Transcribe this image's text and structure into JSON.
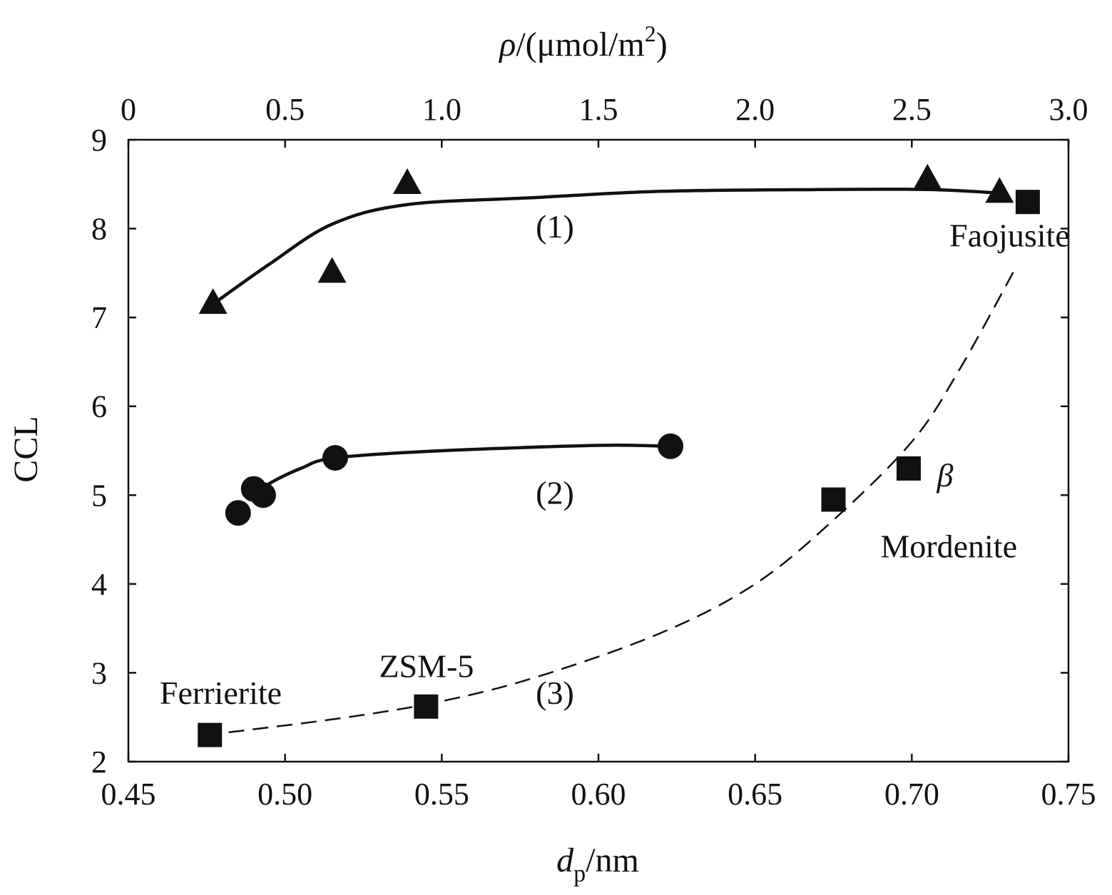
{
  "chart_data": {
    "type": "scatter",
    "title": "",
    "xlabel": {
      "main": "d",
      "sub": "p",
      "rest": "/nm"
    },
    "x2label": {
      "main": "ρ",
      "rest": "/(μmol/m",
      "sup": "2",
      "close": ")"
    },
    "ylabel": "CCL",
    "xlim": [
      0.45,
      0.75
    ],
    "x2lim": [
      0,
      3.0
    ],
    "ylim": [
      2,
      9
    ],
    "x_ticks": [
      {
        "value": 0.45,
        "label": "0.45"
      },
      {
        "value": 0.5,
        "label": "0.50"
      },
      {
        "value": 0.55,
        "label": "0.55"
      },
      {
        "value": 0.6,
        "label": "0.60"
      },
      {
        "value": 0.65,
        "label": "0.65"
      },
      {
        "value": 0.7,
        "label": "0.70"
      },
      {
        "value": 0.75,
        "label": "0.75"
      }
    ],
    "x2_ticks": [
      {
        "value": 0,
        "label": "0"
      },
      {
        "value": 0.5,
        "label": "0.5"
      },
      {
        "value": 1.0,
        "label": "1.0"
      },
      {
        "value": 1.5,
        "label": "1.5"
      },
      {
        "value": 2.0,
        "label": "2.0"
      },
      {
        "value": 2.5,
        "label": "2.5"
      },
      {
        "value": 3.0,
        "label": "3.0"
      }
    ],
    "y_ticks": [
      {
        "value": 2,
        "label": "2"
      },
      {
        "value": 3,
        "label": "3"
      },
      {
        "value": 4,
        "label": "4"
      },
      {
        "value": 5,
        "label": "5"
      },
      {
        "value": 6,
        "label": "6"
      },
      {
        "value": 7,
        "label": "7"
      },
      {
        "value": 8,
        "label": "8"
      },
      {
        "value": 9,
        "label": "9"
      }
    ],
    "grid": false,
    "series": [
      {
        "label": "(1)",
        "axis": "top",
        "marker": "triangle",
        "line": "solid",
        "points": [
          {
            "x": 0.27,
            "y": 7.15
          },
          {
            "x": 0.65,
            "y": 7.5
          },
          {
            "x": 0.89,
            "y": 8.5
          },
          {
            "x": 2.55,
            "y": 8.55
          },
          {
            "x": 2.78,
            "y": 8.4
          }
        ],
        "curve": [
          {
            "x": 0.27,
            "y": 7.15
          },
          {
            "x": 0.45,
            "y": 7.6
          },
          {
            "x": 0.65,
            "y": 8.05
          },
          {
            "x": 0.89,
            "y": 8.27
          },
          {
            "x": 1.3,
            "y": 8.35
          },
          {
            "x": 1.7,
            "y": 8.42
          },
          {
            "x": 2.2,
            "y": 8.44
          },
          {
            "x": 2.55,
            "y": 8.44
          },
          {
            "x": 2.78,
            "y": 8.4
          }
        ]
      },
      {
        "label": "(2)",
        "axis": "bottom",
        "marker": "circle",
        "line": "solid",
        "points": [
          {
            "x": 0.485,
            "y": 4.8
          },
          {
            "x": 0.49,
            "y": 5.07
          },
          {
            "x": 0.493,
            "y": 5.0
          },
          {
            "x": 0.516,
            "y": 5.42
          },
          {
            "x": 0.623,
            "y": 5.55
          }
        ],
        "curve": [
          {
            "x": 0.488,
            "y": 4.95
          },
          {
            "x": 0.495,
            "y": 5.13
          },
          {
            "x": 0.505,
            "y": 5.3
          },
          {
            "x": 0.516,
            "y": 5.42
          },
          {
            "x": 0.55,
            "y": 5.5
          },
          {
            "x": 0.6,
            "y": 5.56
          },
          {
            "x": 0.623,
            "y": 5.55
          }
        ]
      },
      {
        "label": "(3)",
        "axis": "bottom",
        "marker": "square",
        "line": "dashed",
        "points": [
          {
            "x": 0.476,
            "y": 2.3,
            "name": "Ferrierite"
          },
          {
            "x": 0.545,
            "y": 2.62,
            "name": "ZSM-5"
          },
          {
            "x": 0.675,
            "y": 4.95,
            "name": "Mordenite"
          },
          {
            "x": 0.699,
            "y": 5.3,
            "name": "β"
          },
          {
            "x": 0.737,
            "y": 8.3,
            "name": "Faojusite"
          }
        ],
        "curve": [
          {
            "x": 0.482,
            "y": 2.33
          },
          {
            "x": 0.52,
            "y": 2.5
          },
          {
            "x": 0.55,
            "y": 2.68
          },
          {
            "x": 0.58,
            "y": 2.95
          },
          {
            "x": 0.62,
            "y": 3.45
          },
          {
            "x": 0.65,
            "y": 4.0
          },
          {
            "x": 0.675,
            "y": 4.72
          },
          {
            "x": 0.7,
            "y": 5.6
          },
          {
            "x": 0.715,
            "y": 6.4
          },
          {
            "x": 0.733,
            "y": 7.55
          }
        ]
      }
    ],
    "annotations": [
      {
        "text": "(1)",
        "x": 0.58,
        "y": 7.9
      },
      {
        "text": "(2)",
        "x": 0.58,
        "y": 4.9
      },
      {
        "text": "(3)",
        "x": 0.58,
        "y": 2.65
      },
      {
        "text": "Ferrierite",
        "x": 0.46,
        "y": 2.65
      },
      {
        "text": "ZSM-5",
        "x": 0.53,
        "y": 2.95
      },
      {
        "text": "Mordenite",
        "x": 0.69,
        "y": 4.3
      },
      {
        "text": "β",
        "x": 0.708,
        "y": 5.1
      },
      {
        "text": "Faojusite",
        "x": 0.712,
        "y": 7.8
      }
    ]
  }
}
